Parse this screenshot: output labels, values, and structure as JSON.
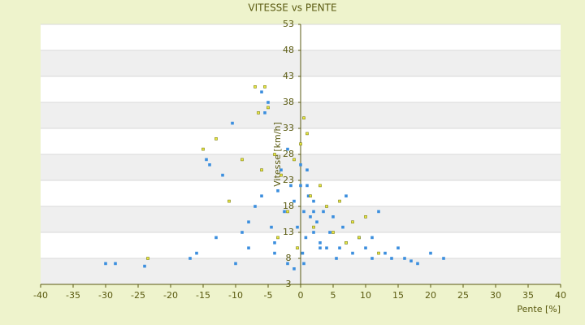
{
  "chart_data": {
    "type": "scatter",
    "title": "VITESSE vs PENTE",
    "x_label": "Pente [%]",
    "y_label": "Vitesse [km/h]",
    "xlim": [
      -40,
      40
    ],
    "xticks": [
      -40,
      -35,
      -30,
      -25,
      -20,
      -15,
      -10,
      -5,
      0,
      5,
      10,
      15,
      20,
      25,
      30,
      35,
      40
    ],
    "ylim": [
      3,
      53
    ],
    "yticks": [
      3,
      8,
      13,
      18,
      23,
      28,
      33,
      38,
      43,
      48,
      53
    ],
    "grid": true,
    "series": [
      {
        "color": "#3b8ede",
        "x": [
          -30,
          -28.5,
          -24,
          -17,
          -16,
          -14,
          -12,
          -10,
          -9,
          -8,
          -7,
          -6,
          -5,
          -4.5,
          -4,
          -3.5,
          -3,
          -2.5,
          -2,
          -1.5,
          -1,
          -0.5,
          0,
          0,
          0.3,
          0.5,
          0.8,
          1,
          1.2,
          1.5,
          2,
          2,
          2.5,
          3,
          3.5,
          4,
          4.5,
          5,
          5.5,
          6,
          6.5,
          7,
          8,
          9,
          10,
          11,
          12,
          13,
          14,
          15,
          16,
          17,
          18,
          20,
          22,
          -5.5,
          -6,
          -10.5,
          -14.5,
          -13,
          -2,
          -1,
          0.5,
          1,
          3,
          -8,
          -4,
          2,
          7,
          11
        ],
        "values": [
          7,
          7,
          6.5,
          8,
          9,
          26,
          24,
          7,
          13,
          10,
          18,
          40,
          38,
          14,
          9,
          21,
          25,
          17,
          29,
          22,
          19,
          14,
          26,
          22,
          9,
          17,
          12,
          25,
          20,
          16,
          19,
          13,
          15,
          11,
          17,
          10,
          13,
          16,
          8,
          10,
          14,
          11,
          9,
          12,
          10,
          8,
          17,
          9,
          8,
          10,
          8,
          7.5,
          7,
          9,
          8,
          36,
          20,
          34,
          27,
          12,
          7,
          6,
          7,
          22,
          10,
          15,
          11,
          17,
          20,
          12
        ]
      },
      {
        "color": "#7d7d0a",
        "x": [
          -23.5,
          -15,
          -13,
          -11,
          -7,
          -6.5,
          -5.5,
          -5,
          -4,
          -3,
          -2,
          -1,
          0,
          1,
          1.5,
          2,
          3,
          4,
          5,
          6,
          7,
          8,
          9,
          10,
          12,
          -9,
          -6,
          -3.5,
          -0.5,
          0.5
        ],
        "values": [
          8,
          29,
          31,
          19,
          41,
          36,
          41,
          37,
          28,
          24,
          17,
          27,
          30,
          32,
          20,
          14,
          22,
          18,
          13,
          19,
          11,
          15,
          12,
          16,
          9,
          27,
          25,
          12,
          10,
          35
        ]
      }
    ]
  }
}
